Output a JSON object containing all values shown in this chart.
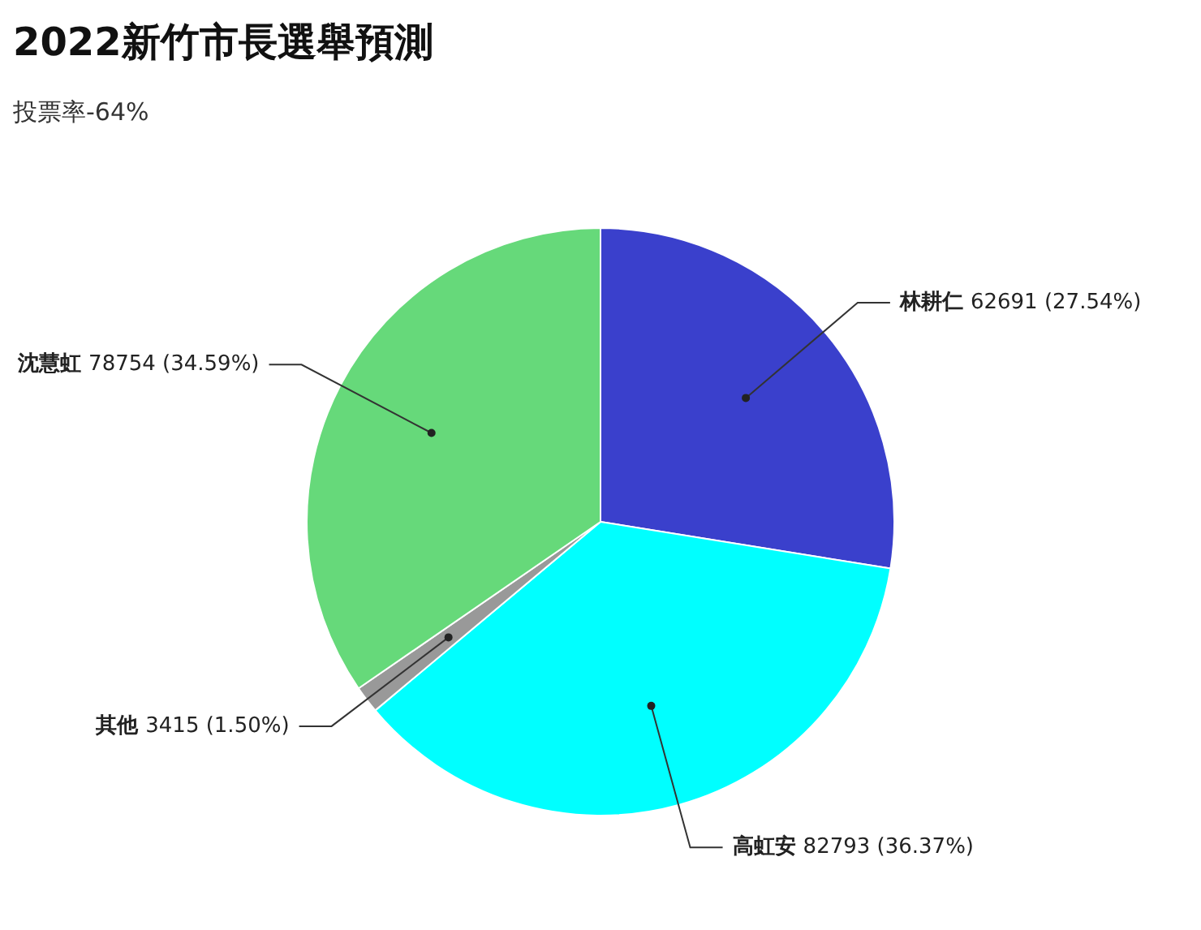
{
  "chart_data": {
    "type": "pie",
    "title": "2022新竹市長選舉預測",
    "subtitle": "投票率-64%",
    "categories": [
      "林耕仁",
      "高虹安",
      "其他",
      "沈慧虹"
    ],
    "values": [
      62691,
      82793,
      3415,
      78754
    ],
    "colors": [
      "#3a40cc",
      "#00ffff",
      "#999999",
      "#66d97a"
    ],
    "value_labels": [
      "62691 (27.54%)",
      "82793 (36.37%)",
      "3415 (1.50%)",
      "78754 (34.59%)"
    ],
    "legend": false
  }
}
